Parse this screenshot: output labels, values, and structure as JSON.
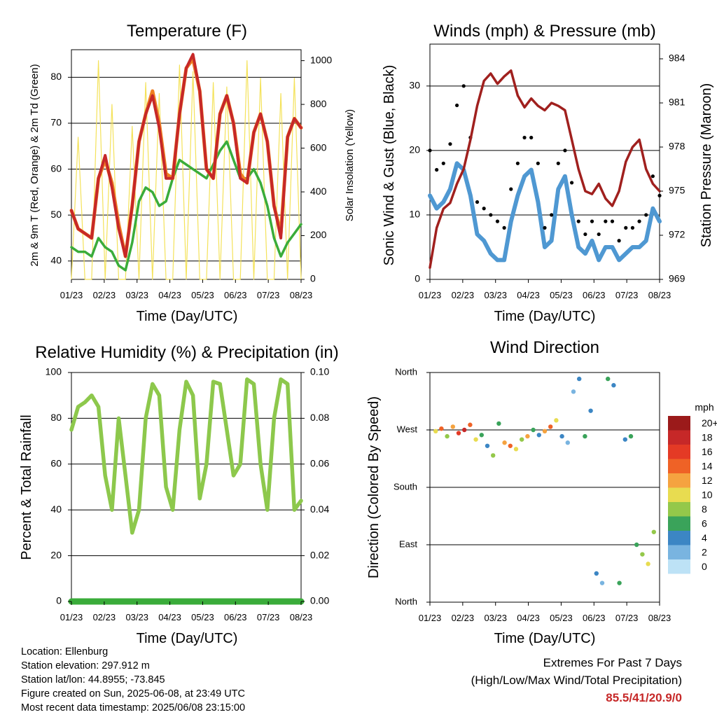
{
  "colors": {
    "temp_2m": "#c62828",
    "temp_9m": "#ef7f22",
    "dewpoint": "#3aac3a",
    "solar": "#f4e25a",
    "wind": "#4f98d2",
    "gust": "#000000",
    "pressure": "#a0201e",
    "rh": "#8dc84c",
    "precip": "#3aac3a",
    "extremes": "#c62828"
  },
  "station": {
    "location": "Location: Ellenburg",
    "elevation": "Station elevation: 297.912 m",
    "latlon": "Station lat/lon: 44.8955; -73.845",
    "created": "Figure created on Sun, 2025-06-08, at 23:49 UTC",
    "recent": "Most recent data timestamp: 2025/06/08 23:15:00"
  },
  "extremes": {
    "title": "Extremes For Past 7 Days",
    "subtitle": "(High/Low/Max Wind/Total Precipitation)",
    "values": "85.5/41/20.9/0"
  },
  "chart_data": [
    {
      "type": "line",
      "title": "Temperature (F)",
      "xlabel": "Time (Day/UTC)",
      "ylabel": "2m & 9m T (Red, Orange) & 2m Td (Green)",
      "y2label": "Solar Insolation (Yellow)",
      "x_ticks": [
        "01/23",
        "02/23",
        "03/23",
        "04/23",
        "05/23",
        "06/23",
        "07/23",
        "08/23"
      ],
      "ylim": [
        36,
        86
      ],
      "y_ticks": [
        40,
        50,
        60,
        70,
        80
      ],
      "y2lim": [
        0,
        1050
      ],
      "y2_ticks": [
        0,
        200,
        400,
        600,
        800,
        1000
      ],
      "grid": "horizontal",
      "series": [
        {
          "name": "2m T",
          "axis": "left",
          "color": "#c62828",
          "values": [
            51,
            47,
            46,
            45,
            58,
            63,
            56,
            47,
            41,
            52,
            66,
            72,
            76,
            69,
            58,
            58,
            72,
            82,
            85,
            77,
            60,
            58,
            72,
            76,
            70,
            58,
            57,
            68,
            72,
            66,
            52,
            45,
            67,
            71,
            69
          ]
        },
        {
          "name": "9m T",
          "axis": "left",
          "color": "#ef7f22",
          "values": [
            51,
            47,
            46,
            45,
            58,
            62,
            57,
            48,
            41,
            52,
            66,
            72,
            77,
            70,
            59,
            58,
            72,
            82,
            84,
            77,
            60,
            58,
            72,
            76,
            70,
            59,
            57,
            68,
            72,
            66,
            52,
            46,
            67,
            71,
            69
          ]
        },
        {
          "name": "2m Td",
          "axis": "left",
          "color": "#3aac3a",
          "values": [
            43,
            42,
            42,
            41,
            45,
            43,
            42,
            39,
            38,
            44,
            53,
            56,
            55,
            52,
            53,
            58,
            62,
            61,
            60,
            59,
            58,
            61,
            64,
            66,
            62,
            58,
            58,
            60,
            57,
            52,
            45,
            41,
            44,
            46,
            48
          ]
        },
        {
          "name": "Solar Insolation",
          "axis": "right",
          "color": "#f4e25a",
          "values": [
            0,
            650,
            0,
            0,
            1000,
            0,
            800,
            0,
            0,
            700,
            0,
            900,
            0,
            850,
            0,
            0,
            980,
            0,
            950,
            0,
            0,
            900,
            0,
            880,
            0,
            0,
            1000,
            0,
            920,
            0,
            0,
            850,
            0,
            920,
            0
          ]
        }
      ]
    },
    {
      "type": "line",
      "title": "Winds (mph) & Pressure (mb)",
      "xlabel": "Time (Day/UTC)",
      "ylabel": "Sonic Wind & Gust (Blue, Black)",
      "y2label": "Station Pressure (Maroon)",
      "x_ticks": [
        "01/23",
        "02/23",
        "03/23",
        "04/23",
        "05/23",
        "06/23",
        "07/23",
        "08/23"
      ],
      "ylim": [
        0,
        36.5
      ],
      "y_ticks": [
        0,
        10,
        20,
        30
      ],
      "y2lim": [
        969,
        985
      ],
      "y2_ticks": [
        969,
        972,
        975,
        978,
        981,
        984
      ],
      "grid": "horizontal",
      "series": [
        {
          "name": "Sonic Wind",
          "axis": "left",
          "color": "#4f98d2",
          "values": [
            13,
            11,
            12,
            14,
            18,
            17,
            13,
            7,
            6,
            4,
            3,
            3,
            9,
            13,
            16,
            17,
            12,
            5,
            6,
            14,
            16,
            10,
            5,
            4,
            6,
            3,
            5,
            5,
            3,
            4,
            5,
            5,
            6,
            11,
            9
          ]
        },
        {
          "name": "Gust",
          "axis": "left",
          "color": "#000000",
          "values": [
            20,
            17,
            18,
            21,
            27,
            30,
            22,
            12,
            11,
            10,
            9,
            8,
            14,
            18,
            22,
            22,
            18,
            8,
            10,
            18,
            20,
            15,
            9,
            7,
            9,
            7,
            9,
            9,
            6,
            8,
            8,
            9,
            10,
            16,
            13
          ]
        },
        {
          "name": "Station Pressure",
          "axis": "right",
          "color": "#a0201e",
          "values": [
            969.8,
            972.5,
            973.8,
            974.2,
            975.5,
            976.5,
            978.5,
            980.8,
            982.5,
            983.0,
            982.3,
            982.8,
            983.2,
            981.5,
            980.7,
            981.3,
            980.8,
            980.5,
            981.0,
            980.8,
            980.5,
            978.5,
            976.5,
            975.0,
            974.8,
            975.5,
            974.5,
            974.0,
            975.0,
            977.0,
            978.0,
            978.5,
            976.5,
            975.5,
            975.0
          ]
        }
      ]
    },
    {
      "type": "line",
      "title": "Relative Humidity (%) & Precipitation (in)",
      "xlabel": "Time (Day/UTC)",
      "ylabel": "Percent & Total Rainfall",
      "x_ticks": [
        "01/23",
        "02/23",
        "03/23",
        "04/23",
        "05/23",
        "06/23",
        "07/23",
        "08/23"
      ],
      "ylim": [
        0,
        100
      ],
      "y_ticks": [
        0,
        20,
        40,
        60,
        80,
        100
      ],
      "y2lim": [
        0,
        0.1
      ],
      "y2_ticks": [
        "0.00",
        "0.02",
        "0.04",
        "0.06",
        "0.08",
        "0.10"
      ],
      "grid": "horizontal",
      "series": [
        {
          "name": "Relative Humidity",
          "axis": "left",
          "color": "#8dc84c",
          "values": [
            75,
            85,
            87,
            90,
            85,
            55,
            40,
            80,
            55,
            30,
            40,
            80,
            95,
            90,
            50,
            40,
            75,
            96,
            90,
            45,
            60,
            96,
            95,
            75,
            55,
            60,
            97,
            95,
            60,
            40,
            80,
            97,
            95,
            40,
            44
          ]
        },
        {
          "name": "Total Precipitation",
          "axis": "right",
          "color": "#3aac3a",
          "values": [
            0,
            0,
            0,
            0,
            0,
            0,
            0,
            0,
            0,
            0,
            0,
            0,
            0,
            0,
            0,
            0,
            0,
            0,
            0,
            0,
            0,
            0,
            0,
            0,
            0,
            0,
            0,
            0,
            0,
            0,
            0,
            0,
            0,
            0,
            0
          ]
        }
      ]
    },
    {
      "type": "scatter",
      "title": "Wind Direction",
      "xlabel": "Time (Day/UTC)",
      "ylabel": "Direction (Colored By Speed)",
      "x_ticks": [
        "01/23",
        "02/23",
        "03/23",
        "04/23",
        "05/23",
        "06/23",
        "07/23",
        "08/23"
      ],
      "ylim": [
        0,
        360
      ],
      "y_ticks": [
        "North",
        "East",
        "South",
        "West",
        "North"
      ],
      "legend": {
        "title": "mph",
        "labels": [
          "20+",
          "18",
          "16",
          "14",
          "12",
          "10",
          "8",
          "6",
          "4",
          "2",
          "0"
        ],
        "colors": [
          "#9b1a1a",
          "#c62828",
          "#e43a25",
          "#ef6226",
          "#f5a340",
          "#e8dc50",
          "#94c84a",
          "#3aa35a",
          "#3c86c4",
          "#79b4e0",
          "#bde2f6"
        ],
        "placement": "right"
      },
      "points": [
        {
          "x": 0.3,
          "dir": 268,
          "speed": 10
        },
        {
          "x": 0.6,
          "dir": 272,
          "speed": 14
        },
        {
          "x": 0.9,
          "dir": 260,
          "speed": 8
        },
        {
          "x": 1.2,
          "dir": 275,
          "speed": 12
        },
        {
          "x": 1.5,
          "dir": 265,
          "speed": 16
        },
        {
          "x": 1.8,
          "dir": 270,
          "speed": 18
        },
        {
          "x": 2.1,
          "dir": 278,
          "speed": 14
        },
        {
          "x": 2.4,
          "dir": 255,
          "speed": 10
        },
        {
          "x": 2.7,
          "dir": 262,
          "speed": 6
        },
        {
          "x": 3.0,
          "dir": 245,
          "speed": 4
        },
        {
          "x": 3.3,
          "dir": 230,
          "speed": 8
        },
        {
          "x": 3.6,
          "dir": 280,
          "speed": 6
        },
        {
          "x": 3.9,
          "dir": 250,
          "speed": 12
        },
        {
          "x": 4.2,
          "dir": 245,
          "speed": 14
        },
        {
          "x": 4.5,
          "dir": 240,
          "speed": 10
        },
        {
          "x": 4.8,
          "dir": 255,
          "speed": 8
        },
        {
          "x": 5.1,
          "dir": 260,
          "speed": 12
        },
        {
          "x": 5.4,
          "dir": 270,
          "speed": 6
        },
        {
          "x": 5.7,
          "dir": 262,
          "speed": 4
        },
        {
          "x": 6.0,
          "dir": 268,
          "speed": 12
        },
        {
          "x": 6.3,
          "dir": 275,
          "speed": 14
        },
        {
          "x": 6.6,
          "dir": 285,
          "speed": 10
        },
        {
          "x": 6.9,
          "dir": 260,
          "speed": 4
        },
        {
          "x": 7.2,
          "dir": 250,
          "speed": 2
        },
        {
          "x": 7.5,
          "dir": 330,
          "speed": 2
        },
        {
          "x": 7.8,
          "dir": 350,
          "speed": 4
        },
        {
          "x": 8.1,
          "dir": 260,
          "speed": 6
        },
        {
          "x": 8.4,
          "dir": 300,
          "speed": 4
        },
        {
          "x": 8.7,
          "dir": 45,
          "speed": 4
        },
        {
          "x": 9.0,
          "dir": 30,
          "speed": 2
        },
        {
          "x": 9.3,
          "dir": 350,
          "speed": 6
        },
        {
          "x": 9.6,
          "dir": 340,
          "speed": 4
        },
        {
          "x": 9.9,
          "dir": 30,
          "speed": 6
        },
        {
          "x": 10.2,
          "dir": 255,
          "speed": 4
        },
        {
          "x": 10.5,
          "dir": 260,
          "speed": 6
        },
        {
          "x": 10.8,
          "dir": 90,
          "speed": 6
        },
        {
          "x": 11.1,
          "dir": 75,
          "speed": 8
        },
        {
          "x": 11.4,
          "dir": 60,
          "speed": 10
        },
        {
          "x": 11.7,
          "dir": 110,
          "speed": 8
        }
      ]
    }
  ]
}
